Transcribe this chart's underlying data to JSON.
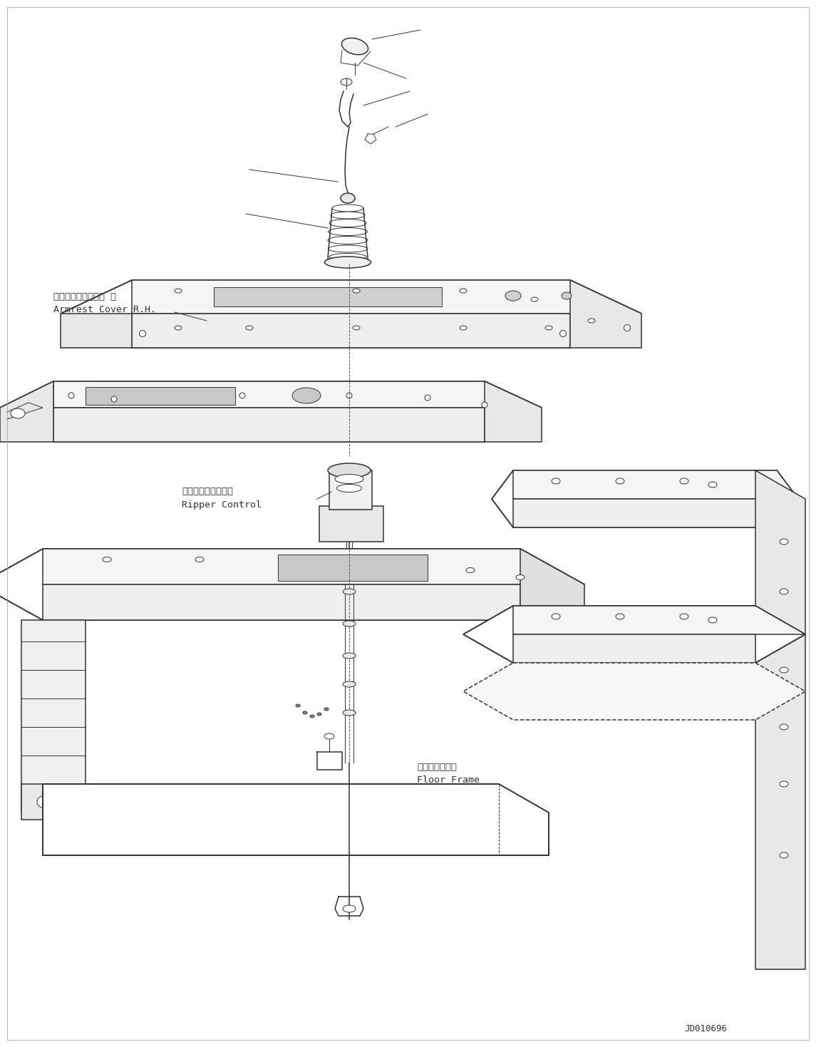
{
  "bg_color": "#ffffff",
  "line_color": "#333333",
  "figsize": [
    11.45,
    14.69
  ],
  "dpi": 100,
  "labels": {
    "armrest_cover_jp": "アームレストカバー 右",
    "armrest_cover_en": "Armrest Cover R.H.",
    "ripper_control_jp": "リッパコントロール",
    "ripper_control_en": "Ripper Control",
    "floor_frame_jp": "フロアフレーム",
    "floor_frame_en": "Floor Frame",
    "drawing_number": "JD010696"
  },
  "font_sizes": {
    "label_jp": 9.5,
    "label_en": 9.5,
    "drawing_number": 9
  }
}
